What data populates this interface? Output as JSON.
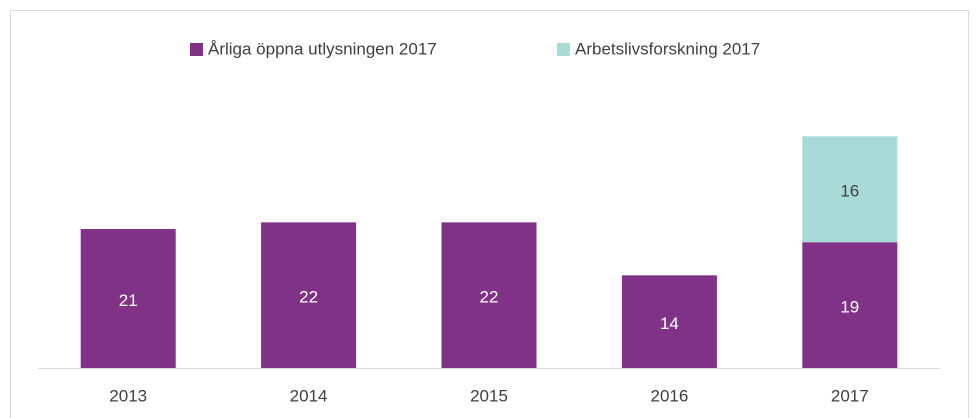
{
  "chart_data": {
    "type": "bar",
    "stacked": true,
    "categories": [
      "2013",
      "2014",
      "2015",
      "2016",
      "2017"
    ],
    "series": [
      {
        "name": "Årliga öppna utlysningen 2017",
        "color": "#7f3286",
        "values": [
          21,
          22,
          22,
          14,
          19
        ]
      },
      {
        "name": "Arbetslivsforskning 2017",
        "color": "#a8dad8",
        "values": [
          null,
          null,
          null,
          null,
          16
        ]
      }
    ],
    "legend": "top"
  }
}
